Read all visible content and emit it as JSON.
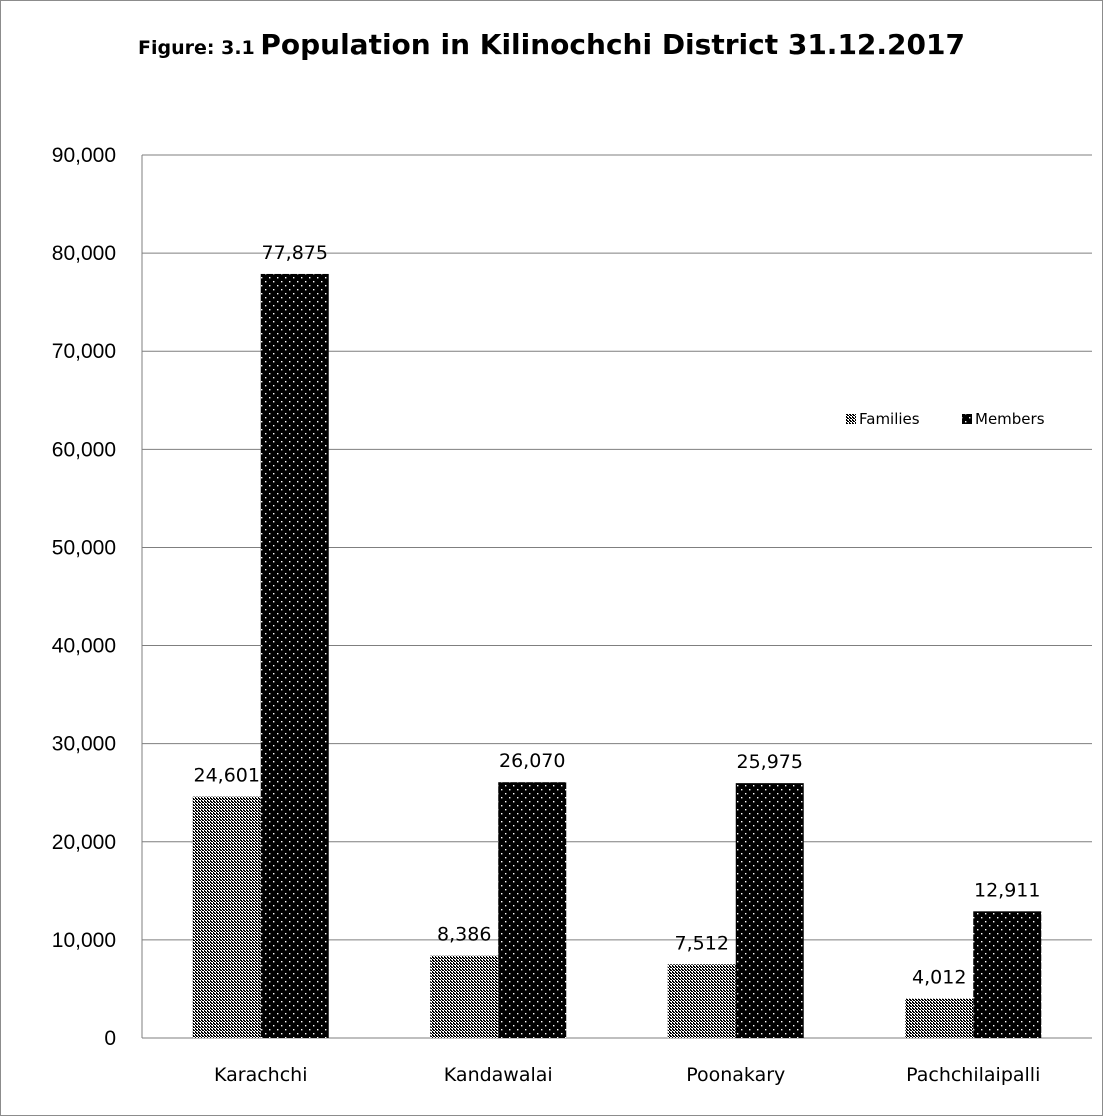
{
  "chart_data": {
    "type": "bar",
    "title_prefix": "Figure: 3.1",
    "title": "Population in Kilinochchi District  31.12.2017",
    "xlabel": "",
    "ylabel": "",
    "categories": [
      "Karachchi",
      "Kandawalai",
      "Poonakary",
      "Pachchilaipalli"
    ],
    "series": [
      {
        "name": "Families",
        "values": [
          24601,
          8386,
          7512,
          4012
        ],
        "labels": [
          "24,601",
          "8,386",
          "7,512",
          "4,012"
        ],
        "pattern": "checker-dense"
      },
      {
        "name": "Members",
        "values": [
          77875,
          26070,
          25975,
          12911
        ],
        "labels": [
          "77,875",
          "26,070",
          "25,975",
          "12,911"
        ],
        "pattern": "dots-on-black"
      }
    ],
    "ylim": [
      0,
      90000
    ],
    "yticks": [
      0,
      10000,
      20000,
      30000,
      40000,
      50000,
      60000,
      70000,
      80000,
      90000
    ],
    "ytick_labels": [
      "0",
      "10,000",
      "20,000",
      "30,000",
      "40,000",
      "50,000",
      "60,000",
      "70,000",
      "80,000",
      "90,000"
    ],
    "grid": true,
    "legend_position": "right",
    "colors": {
      "bar_fill": "#000000",
      "grid": "#7f7f7f",
      "frame": "#8c8c8c"
    }
  }
}
